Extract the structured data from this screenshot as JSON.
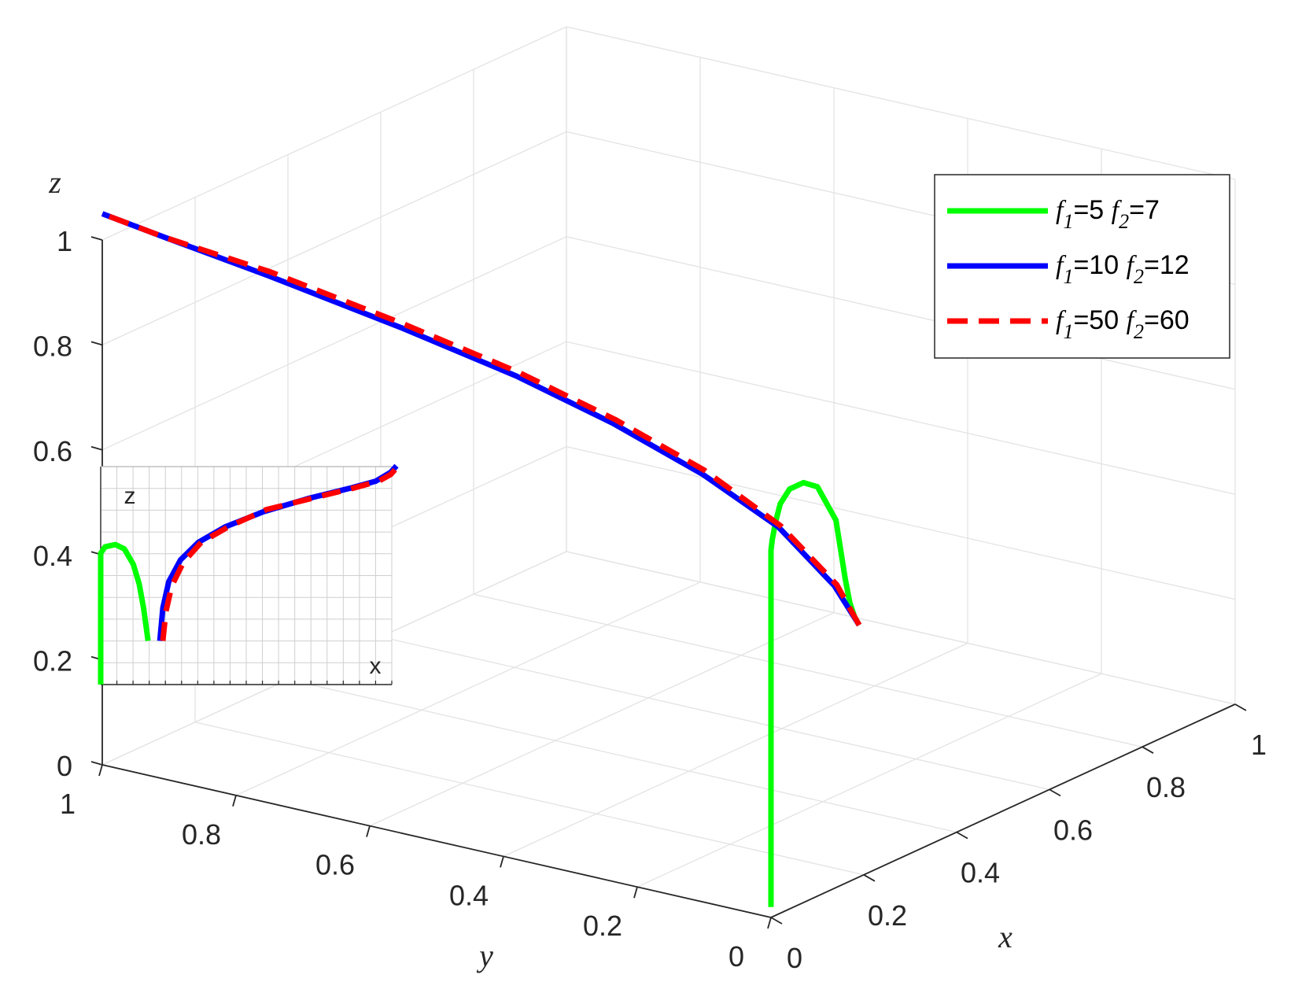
{
  "chart_data": [
    {
      "type": "line",
      "projection": "3d",
      "xlabel": "x",
      "ylabel": "y",
      "zlabel": "z",
      "xlim": [
        0,
        1
      ],
      "ylim": [
        0,
        1
      ],
      "zlim": [
        0,
        1
      ],
      "x_ticks": [
        "0",
        "0.2",
        "0.4",
        "0.6",
        "0.8",
        "1"
      ],
      "y_ticks": [
        "0",
        "0.2",
        "0.4",
        "0.6",
        "0.8",
        "1"
      ],
      "z_ticks": [
        "0",
        "0.2",
        "0.4",
        "0.6",
        "0.8",
        "1"
      ],
      "grid": true,
      "legend": {
        "placement": "top-right",
        "entries": [
          {
            "f1": "f",
            "sub1": "1",
            "eq1": "=5 ",
            "f2": "f",
            "sub2": "2",
            "eq2": "=7"
          },
          {
            "f1": "f",
            "sub1": "1",
            "eq1": "=10 ",
            "f2": "f",
            "sub2": "2",
            "eq2": "=12"
          },
          {
            "f1": "f",
            "sub1": "1",
            "eq1": "=50 ",
            "f2": "f",
            "sub2": "2",
            "eq2": "=60"
          }
        ]
      },
      "colors": {
        "green": "#00ff00",
        "blue": "#0000ff",
        "red": "#ff0000"
      },
      "series": [
        {
          "style": "solid",
          "color": "#00ff00",
          "points": [
            [
              0,
              0,
              0.02
            ],
            [
              0,
              0,
              0.2
            ],
            [
              0,
              0,
              0.4
            ],
            [
              0,
              0,
              0.6
            ],
            [
              0,
              0,
              0.7
            ],
            [
              0.003,
              0,
              0.72
            ],
            [
              0.01,
              0,
              0.75
            ],
            [
              0.02,
              0,
              0.78
            ],
            [
              0.04,
              0,
              0.8
            ],
            [
              0.07,
              0,
              0.8
            ],
            [
              0.1,
              0,
              0.78
            ],
            [
              0.12,
              0,
              0.74
            ],
            [
              0.14,
              0,
              0.7
            ],
            [
              0.15,
              0,
              0.64
            ],
            [
              0.16,
              0,
              0.58
            ],
            [
              0.17,
              0,
              0.53
            ],
            [
              0.18,
              0,
              0.5
            ],
            [
              0.19,
              0,
              0.48
            ]
          ]
        },
        {
          "style": "solid",
          "color": "#0000ff",
          "points": [
            [
              0.19,
              0,
              0.48
            ],
            [
              0.18,
              0.03,
              0.55
            ],
            [
              0.16,
              0.1,
              0.65
            ],
            [
              0.14,
              0.2,
              0.73
            ],
            [
              0.12,
              0.32,
              0.8
            ],
            [
              0.1,
              0.45,
              0.86
            ],
            [
              0.07,
              0.6,
              0.92
            ],
            [
              0.04,
              0.78,
              0.98
            ],
            [
              0.02,
              0.92,
              1.02
            ],
            [
              0,
              1,
              1.05
            ]
          ]
        },
        {
          "style": "dashed",
          "color": "#ff0000",
          "points": [
            [
              0.19,
              0,
              0.48
            ],
            [
              0.185,
              0.03,
              0.55
            ],
            [
              0.165,
              0.1,
              0.65
            ],
            [
              0.145,
              0.2,
              0.735
            ],
            [
              0.125,
              0.32,
              0.805
            ],
            [
              0.105,
              0.45,
              0.865
            ],
            [
              0.075,
              0.6,
              0.925
            ],
            [
              0.045,
              0.78,
              0.985
            ],
            [
              0.02,
              0.92,
              1.02
            ],
            [
              0,
              1,
              1.05
            ]
          ]
        }
      ]
    },
    {
      "type": "line",
      "placement": "inset, left",
      "xlabel": "x",
      "ylabel": "z",
      "series": [
        {
          "style": "solid",
          "color": "#00ff00",
          "points": [
            [
              0,
              0
            ],
            [
              0,
              0.6
            ],
            [
              0.015,
              0.63
            ],
            [
              0.05,
              0.64
            ],
            [
              0.08,
              0.62
            ],
            [
              0.11,
              0.55
            ],
            [
              0.13,
              0.46
            ],
            [
              0.145,
              0.35
            ],
            [
              0.155,
              0.25
            ],
            [
              0.16,
              0.2
            ]
          ]
        },
        {
          "style": "solid",
          "color": "#0000ff",
          "points": [
            [
              0.2,
              0.2
            ],
            [
              0.21,
              0.35
            ],
            [
              0.23,
              0.47
            ],
            [
              0.27,
              0.57
            ],
            [
              0.33,
              0.65
            ],
            [
              0.42,
              0.72
            ],
            [
              0.55,
              0.79
            ],
            [
              0.7,
              0.85
            ],
            [
              0.85,
              0.9
            ],
            [
              0.93,
              0.93
            ],
            [
              0.98,
              0.97
            ],
            [
              1,
              1
            ]
          ]
        },
        {
          "style": "dashed",
          "color": "#ff0000",
          "points": [
            [
              0.21,
              0.2
            ],
            [
              0.22,
              0.33
            ],
            [
              0.24,
              0.45
            ],
            [
              0.28,
              0.56
            ],
            [
              0.34,
              0.65
            ],
            [
              0.43,
              0.72
            ],
            [
              0.56,
              0.8
            ],
            [
              0.71,
              0.85
            ],
            [
              0.86,
              0.9
            ],
            [
              0.94,
              0.93
            ],
            [
              0.98,
              0.96
            ],
            [
              1,
              0.99
            ]
          ]
        }
      ]
    }
  ]
}
